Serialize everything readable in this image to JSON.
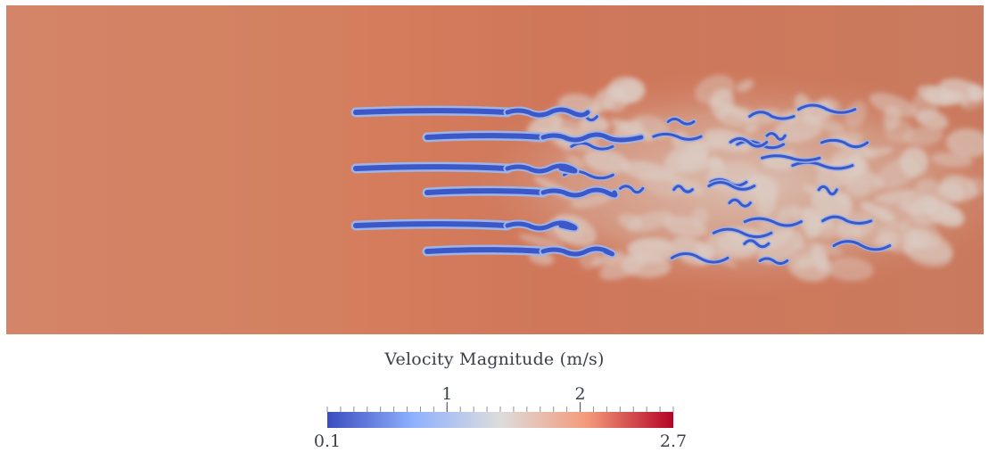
{
  "legend": {
    "title": "Velocity Magnitude (m/s)",
    "range": [
      0.1,
      2.7
    ],
    "labeled_ticks": [
      {
        "value": 1,
        "text": "1"
      },
      {
        "value": 2,
        "text": "2"
      }
    ],
    "min_label": "0.1",
    "max_label": "2.7",
    "minor_tick_step": 0.1,
    "colormap": [
      {
        "value": 0.1,
        "color": "#3b4cc0"
      },
      {
        "value": 0.75,
        "color": "#8fb1fe"
      },
      {
        "value": 1.4,
        "color": "#dddcdc"
      },
      {
        "value": 2.05,
        "color": "#f49a7b"
      },
      {
        "value": 2.7,
        "color": "#b40426"
      }
    ]
  },
  "field": {
    "background_color": "#d0785a",
    "inflow_color": "#d38266",
    "wake_color": "#dccbc2",
    "slow_color": "#3b57c8",
    "slow_edge_color": "#9fb4e6"
  }
}
